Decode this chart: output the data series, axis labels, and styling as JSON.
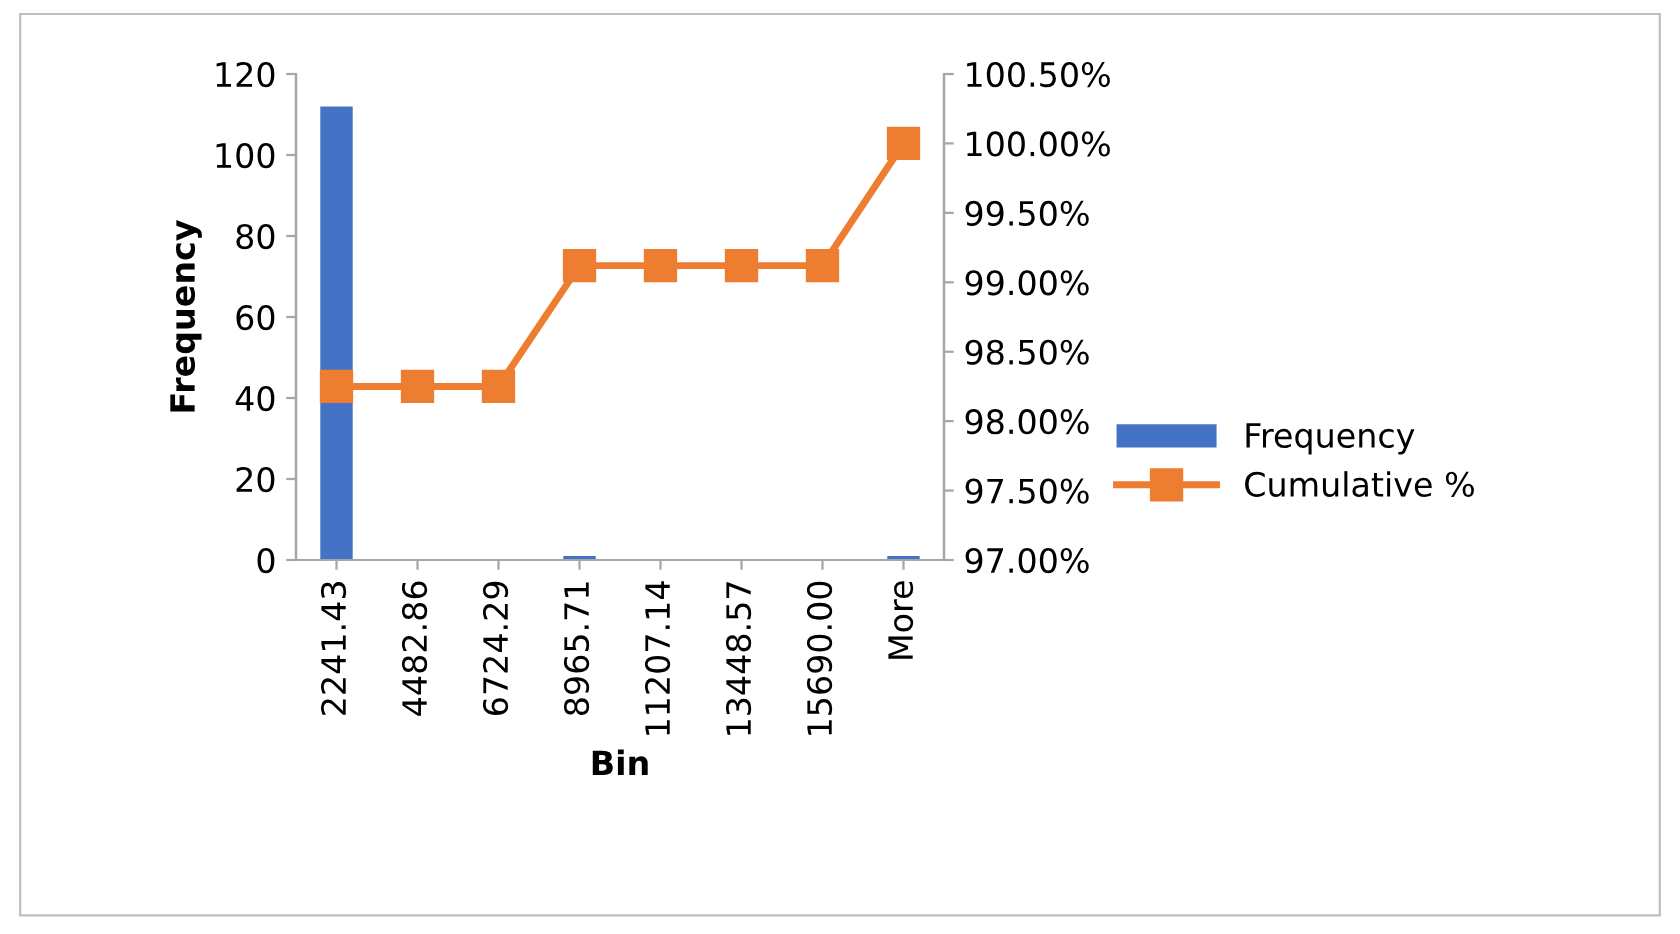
{
  "chart_data": {
    "type": "bar",
    "xlabel": "Bin",
    "ylabel": "Frequency",
    "categories": [
      "2241.43",
      "4482.86",
      "6724.29",
      "8965.71",
      "11207.14",
      "13448.57",
      "15690.00",
      "More"
    ],
    "series": [
      {
        "name": "Frequency",
        "color": "#4472c4",
        "values": [
          112,
          0,
          0,
          1,
          0,
          0,
          0,
          1
        ]
      },
      {
        "name": "Cumulative %",
        "type": "line",
        "axis": "y2",
        "color": "#ed7d31",
        "marker": "square",
        "line_style": "solid",
        "values": [
          98.25,
          98.25,
          98.25,
          99.12,
          99.12,
          99.12,
          99.12,
          100
        ]
      }
    ],
    "ylim": [
      0,
      120
    ],
    "yticks": [
      0,
      20,
      40,
      60,
      80,
      100,
      120
    ],
    "y2lim": [
      97,
      100.5
    ],
    "y2ticks": [
      {
        "value": 97,
        "label": "97.00%"
      },
      {
        "value": 97.5,
        "label": "97.50%"
      },
      {
        "value": 98,
        "label": "98.00%"
      },
      {
        "value": 98.5,
        "label": "98.50%"
      },
      {
        "value": 99,
        "label": "99.00%"
      },
      {
        "value": 99.5,
        "label": "99.50%"
      },
      {
        "value": 100,
        "label": "100.00%"
      },
      {
        "value": 100.5,
        "label": "100.50%"
      }
    ],
    "grid": false,
    "legend": "right"
  }
}
